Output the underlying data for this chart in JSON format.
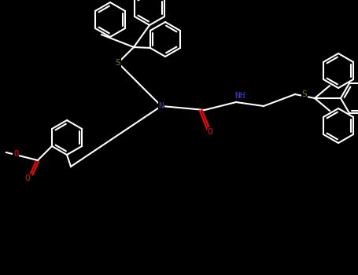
{
  "bg": "#000000",
  "bond_color": "#ffffff",
  "S_color": "#808000",
  "N_color": "#4040c0",
  "O_color": "#ff0000",
  "atom_colors": {
    "S": "#808000",
    "N": "#4040c0",
    "O": "#ff0000",
    "C": "#ffffff"
  },
  "lw": 1.5
}
